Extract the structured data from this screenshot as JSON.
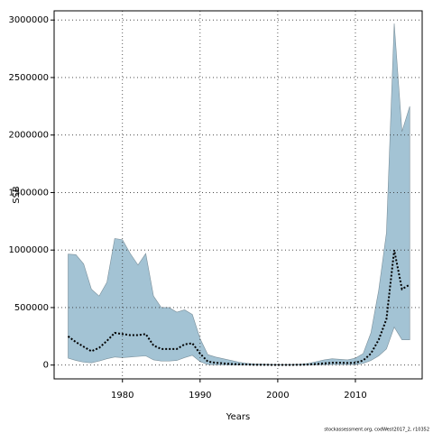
{
  "chart_data": {
    "type": "line",
    "xlabel": "Years",
    "ylabel": "SSB",
    "footnote": "stockassessment.org, codWest2017_2, r10352",
    "x": [
      1973,
      1974,
      1975,
      1976,
      1977,
      1978,
      1979,
      1980,
      1981,
      1982,
      1983,
      1984,
      1985,
      1986,
      1987,
      1988,
      1989,
      1990,
      1991,
      1992,
      1993,
      1994,
      1995,
      1996,
      1997,
      1998,
      1999,
      2000,
      2001,
      2002,
      2003,
      2004,
      2005,
      2006,
      2007,
      2008,
      2009,
      2010,
      2011,
      2012,
      2013,
      2014,
      2015,
      2016,
      2017
    ],
    "median": [
      250000,
      200000,
      160000,
      120000,
      150000,
      210000,
      280000,
      270000,
      260000,
      260000,
      270000,
      170000,
      140000,
      140000,
      140000,
      180000,
      190000,
      100000,
      30000,
      20000,
      15000,
      10000,
      7000,
      5000,
      3000,
      2500,
      2000,
      2000,
      2000,
      2000,
      3000,
      5000,
      10000,
      15000,
      20000,
      20000,
      18000,
      20000,
      40000,
      100000,
      220000,
      400000,
      1000000,
      660000,
      700000
    ],
    "upper": [
      965000,
      960000,
      880000,
      660000,
      600000,
      720000,
      1100000,
      1090000,
      970000,
      870000,
      970000,
      600000,
      500000,
      500000,
      460000,
      480000,
      440000,
      230000,
      90000,
      70000,
      55000,
      40000,
      25000,
      15000,
      10000,
      8000,
      6000,
      5000,
      5000,
      6000,
      8000,
      15000,
      30000,
      45000,
      55000,
      50000,
      45000,
      60000,
      100000,
      280000,
      650000,
      1150000,
      2970000,
      2030000,
      2250000
    ],
    "lower": [
      60000,
      40000,
      25000,
      20000,
      35000,
      55000,
      70000,
      65000,
      70000,
      75000,
      80000,
      45000,
      35000,
      35000,
      40000,
      65000,
      85000,
      30000,
      5000,
      2000,
      1500,
      1000,
      800,
      500,
      400,
      300,
      300,
      300,
      300,
      300,
      400,
      800,
      2000,
      3000,
      5000,
      5000,
      4000,
      5000,
      15000,
      40000,
      80000,
      140000,
      330000,
      220000,
      220000
    ],
    "band_color": "#a3c3d4",
    "line_color": "#000000",
    "xlim": [
      1971.2,
      2018.6
    ],
    "xticks": [
      1980,
      1990,
      2000,
      2010
    ],
    "ylim": [
      -120000,
      3080000
    ],
    "yticks": [
      0,
      500000,
      1000000,
      1500000,
      2000000,
      2500000,
      3000000
    ],
    "grid": true
  }
}
